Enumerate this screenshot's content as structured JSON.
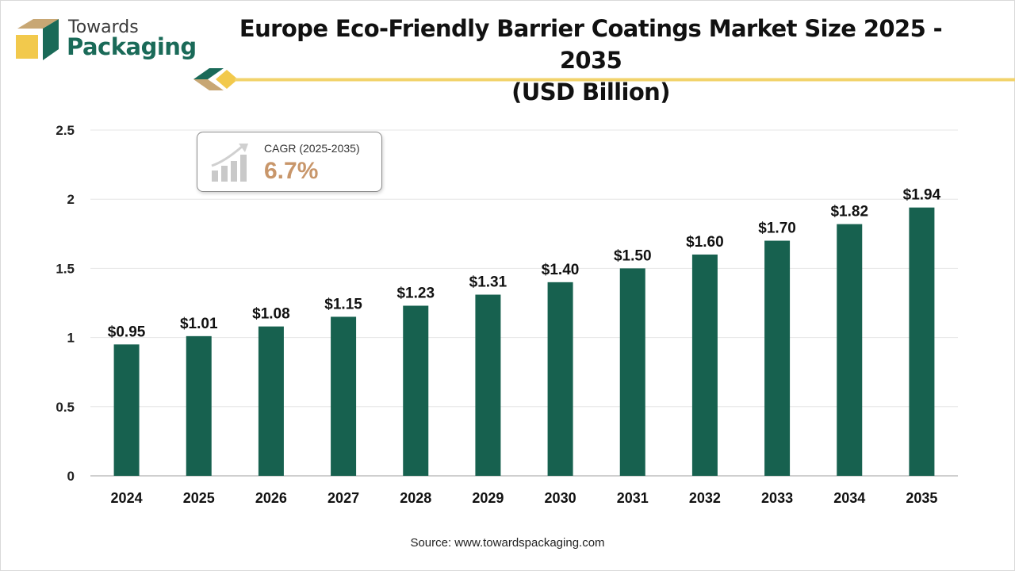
{
  "brand": {
    "name_line1": "Towards",
    "name_line2": "Packaging"
  },
  "colors": {
    "bar": "#17614f",
    "accent_gold": "#f2c94c",
    "accent_green": "#1a6a58",
    "cagr_value": "#c8966a",
    "gridline": "#e6e6e6"
  },
  "callout": {
    "label": "CAGR (2025-2035)",
    "value": "6.7%",
    "icon": "growth-chart-icon"
  },
  "source": "Source: www.towardspackaging.com",
  "chart_data": {
    "type": "bar",
    "title": "Europe Eco-Friendly Barrier Coatings Market Size 2025 - 2035",
    "subtitle": "(USD Billion)",
    "xlabel": "",
    "ylabel": "",
    "categories": [
      "2024",
      "2025",
      "2026",
      "2027",
      "2028",
      "2029",
      "2030",
      "2031",
      "2032",
      "2033",
      "2034",
      "2035"
    ],
    "values": [
      0.95,
      1.01,
      1.08,
      1.15,
      1.23,
      1.31,
      1.4,
      1.5,
      1.6,
      1.7,
      1.82,
      1.94
    ],
    "data_labels": [
      "$0.95",
      "$1.01",
      "$1.08",
      "$1.15",
      "$1.23",
      "$1.31",
      "$1.40",
      "$1.50",
      "$1.60",
      "$1.70",
      "$1.82",
      "$1.94"
    ],
    "ylim": [
      0,
      2.5
    ],
    "yticks": [
      "0",
      "0.5",
      "1",
      "1.5",
      "2",
      "2.5"
    ],
    "ytick_values": [
      0,
      0.5,
      1,
      1.5,
      2,
      2.5
    ],
    "grid": true,
    "legend": "none"
  }
}
